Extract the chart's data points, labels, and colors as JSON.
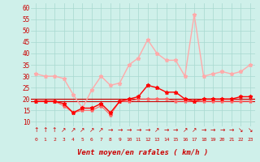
{
  "x": [
    0,
    1,
    2,
    3,
    4,
    5,
    6,
    7,
    8,
    9,
    10,
    11,
    12,
    13,
    14,
    15,
    16,
    17,
    18,
    19,
    20,
    21,
    22,
    23
  ],
  "wind_gust": [
    31,
    30,
    30,
    29,
    22,
    16,
    24,
    30,
    26,
    27,
    35,
    38,
    46,
    40,
    37,
    37,
    30,
    57,
    30,
    31,
    32,
    31,
    32,
    35
  ],
  "wind_avg": [
    19,
    19,
    19,
    18,
    14,
    16,
    16,
    18,
    14,
    19,
    20,
    21,
    26,
    25,
    23,
    23,
    20,
    19,
    20,
    20,
    20,
    20,
    21,
    21
  ],
  "wind_min": [
    19,
    19,
    19,
    17,
    14,
    15,
    15,
    17,
    13,
    19,
    19,
    20,
    20,
    20,
    20,
    19,
    19,
    19,
    19,
    19,
    19,
    19,
    19,
    19
  ],
  "hline1": 20,
  "hline2": 20,
  "hline3": 19,
  "ylim": [
    8,
    62
  ],
  "yticks": [
    10,
    15,
    20,
    25,
    30,
    35,
    40,
    45,
    50,
    55,
    60
  ],
  "xlabel": "Vent moyen/en rafales ( km/h )",
  "bg_color": "#cff0ea",
  "grid_color": "#a8d8d0",
  "color_gust": "#ffaaaa",
  "color_avg": "#ff0000",
  "color_min": "#ff6666",
  "color_hline": "#cc0000",
  "color_tick": "#cc0000",
  "arrow_symbols": [
    "↑",
    "↑",
    "↑",
    "↗",
    "↗",
    "↗",
    "↗",
    "↗",
    "→",
    "→",
    "→",
    "→",
    "→",
    "↗",
    "→",
    "→",
    "↗",
    "↗",
    "→",
    "→",
    "→",
    "→",
    "↘",
    "↘"
  ]
}
